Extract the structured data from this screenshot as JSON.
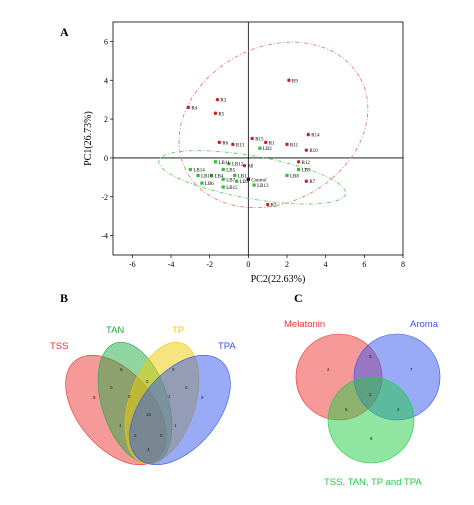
{
  "panels": {
    "A": "A",
    "B": "B",
    "C": "C"
  },
  "chart_data": [
    {
      "type": "scatter",
      "title": "",
      "xlabel": "PC2(22.63%)",
      "ylabel": "PC1(26.73%)",
      "xlim": [
        -7,
        8
      ],
      "ylim": [
        -5,
        7
      ],
      "xticks": [
        -6,
        -4,
        -2,
        0,
        2,
        4,
        6,
        8
      ],
      "yticks": [
        -4,
        -2,
        0,
        2,
        4,
        6
      ],
      "grid": false,
      "reference_lines": {
        "x": 0,
        "y": 0
      },
      "colors": {
        "R": "#cc2222",
        "LB": "#33bb33",
        "Control": "#222222"
      },
      "ellipses": [
        {
          "group": "R",
          "center": [
            1.3,
            1.7
          ],
          "semi_axes": [
            5.1,
            4.0
          ],
          "angle_deg": -28,
          "color": "#e08080"
        },
        {
          "group": "LB",
          "center": [
            0.2,
            -1.0
          ],
          "semi_axes": [
            4.9,
            1.1
          ],
          "angle_deg": 10,
          "color": "#66cc66"
        }
      ],
      "points": [
        {
          "label": "R9",
          "x": 2.1,
          "y": 4.0,
          "group": "R"
        },
        {
          "label": "R3",
          "x": -1.6,
          "y": 3.0,
          "group": "R"
        },
        {
          "label": "R4",
          "x": -3.1,
          "y": 2.6,
          "group": "R"
        },
        {
          "label": "R5",
          "x": -1.7,
          "y": 2.3,
          "group": "R"
        },
        {
          "label": "R14",
          "x": 3.1,
          "y": 1.2,
          "group": "R"
        },
        {
          "label": "R15",
          "x": 0.2,
          "y": 1.0,
          "group": "R"
        },
        {
          "label": "R1",
          "x": 0.9,
          "y": 0.8,
          "group": "R"
        },
        {
          "label": "R6",
          "x": -1.5,
          "y": 0.8,
          "group": "R"
        },
        {
          "label": "R13",
          "x": -0.8,
          "y": 0.7,
          "group": "R"
        },
        {
          "label": "R11",
          "x": 2.0,
          "y": 0.7,
          "group": "R"
        },
        {
          "label": "R10",
          "x": 3.0,
          "y": 0.4,
          "group": "R"
        },
        {
          "label": "LB2",
          "x": 0.6,
          "y": 0.5,
          "group": "LB"
        },
        {
          "label": "R12",
          "x": 2.6,
          "y": -0.2,
          "group": "R"
        },
        {
          "label": "R8",
          "x": -0.2,
          "y": -0.4,
          "group": "R"
        },
        {
          "label": "R7",
          "x": 3.0,
          "y": -1.2,
          "group": "R"
        },
        {
          "label": "R2",
          "x": 1.0,
          "y": -2.4,
          "group": "R"
        },
        {
          "label": "LB12",
          "x": -1.0,
          "y": -0.3,
          "group": "LB"
        },
        {
          "label": "LB11",
          "x": -1.7,
          "y": -0.2,
          "group": "LB"
        },
        {
          "label": "LB14",
          "x": -3.0,
          "y": -0.6,
          "group": "LB"
        },
        {
          "label": "LB5",
          "x": -1.3,
          "y": -0.6,
          "group": "LB"
        },
        {
          "label": "LB4",
          "x": -1.9,
          "y": -0.9,
          "group": "LB"
        },
        {
          "label": "LB10",
          "x": -2.6,
          "y": -0.9,
          "group": "LB"
        },
        {
          "label": "LB1",
          "x": -0.7,
          "y": -0.9,
          "group": "LB"
        },
        {
          "label": "LB9",
          "x": 2.6,
          "y": -0.6,
          "group": "LB"
        },
        {
          "label": "LB8",
          "x": 2.0,
          "y": -0.9,
          "group": "LB"
        },
        {
          "label": "LB7",
          "x": -1.3,
          "y": -1.1,
          "group": "LB"
        },
        {
          "label": "LB6",
          "x": -2.4,
          "y": -1.3,
          "group": "LB"
        },
        {
          "label": "LB3",
          "x": -0.6,
          "y": -1.2,
          "group": "LB"
        },
        {
          "label": "LB15",
          "x": -1.3,
          "y": -1.5,
          "group": "LB"
        },
        {
          "label": "LB13",
          "x": 0.3,
          "y": -1.4,
          "group": "LB"
        },
        {
          "label": "Control",
          "x": 0.0,
          "y": -1.1,
          "group": "Control"
        }
      ]
    },
    {
      "type": "venn",
      "sets": [
        {
          "name": "TSS",
          "color": "#ee3333"
        },
        {
          "name": "TAN",
          "color": "#22aa44"
        },
        {
          "name": "TP",
          "color": "#eecc00"
        },
        {
          "name": "TPA",
          "color": "#3355ee"
        }
      ],
      "region_values": [
        "5",
        "6",
        "0",
        "9",
        "0",
        "0",
        "0",
        "0",
        "1",
        "4",
        "1",
        "16",
        "2",
        "0",
        "4"
      ]
    },
    {
      "type": "venn",
      "sets": [
        {
          "name": "Melatonin",
          "color": "#ee3333"
        },
        {
          "name": "Aroma",
          "color": "#3355ee"
        },
        {
          "name": "TSS, TAN, TP and TPA",
          "color": "#22cc44"
        }
      ],
      "region_values": [
        "2",
        "3",
        "7",
        "5",
        "2",
        "4",
        "8"
      ]
    }
  ]
}
